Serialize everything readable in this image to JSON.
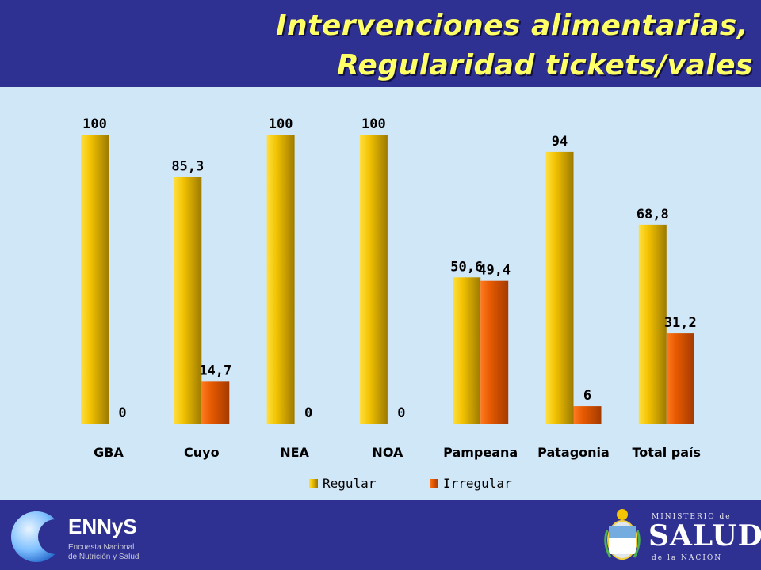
{
  "header": {
    "title_line1": "Intervenciones alimentarias,",
    "title_line2": "Regularidad tickets/vales"
  },
  "colors": {
    "background": "#2e3192",
    "panel": "#cfe7f7",
    "title": "#ffff66",
    "regular": "#f2c200",
    "irregular": "#e65a00"
  },
  "chart_data": {
    "type": "bar",
    "title": "",
    "xlabel": "",
    "ylabel": "",
    "ylim": [
      0,
      100
    ],
    "grid": false,
    "legend_position": "bottom",
    "categories": [
      "GBA",
      "Cuyo",
      "NEA",
      "NOA",
      "Pampeana",
      "Patagonia",
      "Total país"
    ],
    "series": [
      {
        "name": "Regular",
        "values": [
          100,
          85.3,
          100,
          100,
          50.6,
          94,
          68.8
        ],
        "labels": [
          "100",
          "85,3",
          "100",
          "100",
          "50,6",
          "94",
          "68,8"
        ],
        "color": "#f2c200"
      },
      {
        "name": "Irregular",
        "values": [
          0,
          14.7,
          0,
          0,
          49.4,
          6,
          31.2
        ],
        "labels": [
          "0",
          "14,7",
          "0",
          "0",
          "49,4",
          "6",
          "31,2"
        ],
        "color": "#e65a00"
      }
    ]
  },
  "footer": {
    "logo_name": "ENNyS",
    "logo_subtitle1": "Encuesta Nacional",
    "logo_subtitle2": "de Nutrición y Salud",
    "ministry_top": "MINISTERIO de",
    "ministry_name": "SALUD",
    "ministry_bottom": "de la NACIÓN",
    "seal_icon": "argentina-coat-of-arms-icon"
  }
}
